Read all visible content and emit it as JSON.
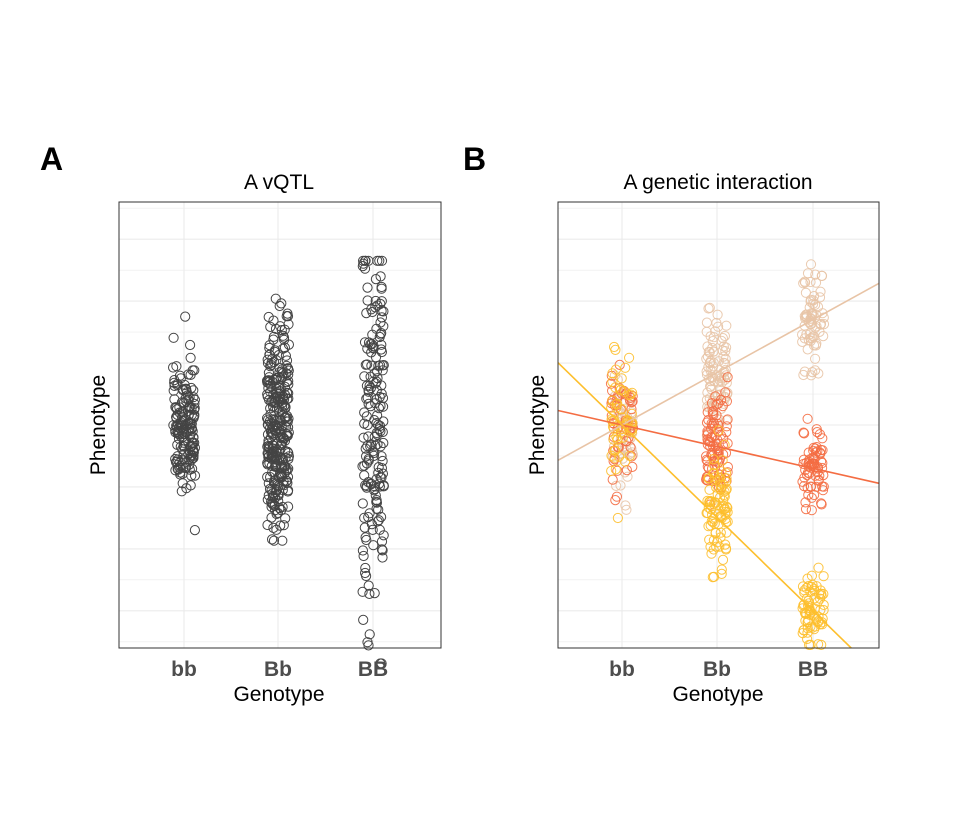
{
  "colors": {
    "points_a": "#444444",
    "grid": "#ebebeb",
    "panel_border": "#333333",
    "tick_label": "#4d4d4d",
    "series_light": "#e8c4a6",
    "series_mid": "#f46d43",
    "series_gold": "#fdbf2d"
  },
  "chart_data": [
    {
      "type": "scatter",
      "panel_label": "A",
      "title": "A vQTL",
      "xlabel": "Genotype",
      "ylabel": "Phenotype",
      "categories": [
        "bb",
        "Bb",
        "BB"
      ],
      "ylim": [
        -3.6,
        3.6
      ],
      "grid": true,
      "y_ticks_labeled": false,
      "spread_by_genotype": [
        {
          "genotype": "bb",
          "mean": 0.0,
          "range": [
            -1.9,
            1.8
          ]
        },
        {
          "genotype": "Bb",
          "mean": 0.0,
          "range": [
            -2.7,
            2.1
          ]
        },
        {
          "genotype": "BB",
          "mean": 0.0,
          "range": [
            -3.9,
            2.7
          ]
        }
      ]
    },
    {
      "type": "scatter",
      "panel_label": "B",
      "title": "A genetic interaction",
      "xlabel": "Genotype",
      "ylabel": "Phenotype",
      "categories": [
        "bb",
        "Bb",
        "BB"
      ],
      "ylim": [
        -3.6,
        3.6
      ],
      "grid": true,
      "y_ticks_labeled": false,
      "legend": "none",
      "series": [
        {
          "color_key": "series_light",
          "means": [
            0.0,
            0.85,
            1.7
          ]
        },
        {
          "color_key": "series_mid",
          "means": [
            0.0,
            -0.35,
            -0.7
          ]
        },
        {
          "color_key": "series_gold",
          "means": [
            0.0,
            -1.5,
            -3.0
          ]
        }
      ]
    }
  ]
}
